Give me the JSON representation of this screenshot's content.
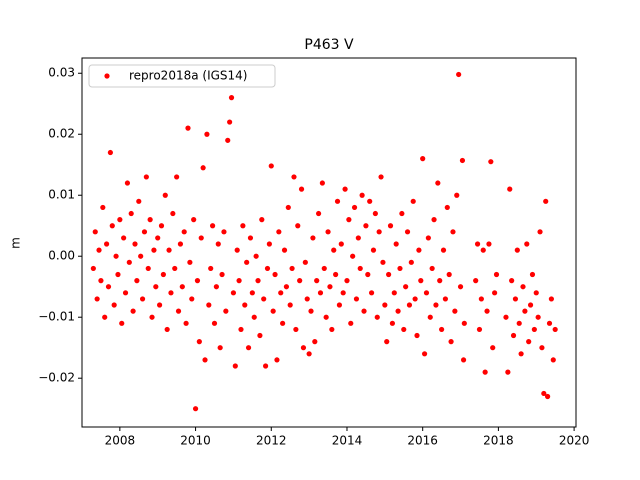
{
  "chart_data": {
    "type": "scatter",
    "title": "P463 V",
    "y_label": "m",
    "legend_position": "upper left",
    "xlim": [
      2007.0,
      2020.05
    ],
    "ylim": [
      -0.028,
      0.0325
    ],
    "xticks": [
      2008,
      2010,
      2012,
      2014,
      2016,
      2018,
      2020
    ],
    "yticks": [
      {
        "value": -0.02,
        "label": "−0.02"
      },
      {
        "value": -0.01,
        "label": "−0.01"
      },
      {
        "value": 0,
        "label": "0.00"
      },
      0.01,
      0.02,
      0.03
    ],
    "series": [
      {
        "name": "repro2018a (IGS14)",
        "color": "#ff0000",
        "x": [
          2007.3,
          2007.35,
          2007.4,
          2007.45,
          2007.5,
          2007.55,
          2007.6,
          2007.65,
          2007.7,
          2007.75,
          2007.8,
          2007.85,
          2007.9,
          2007.95,
          2008.0,
          2008.05,
          2008.1,
          2008.15,
          2008.2,
          2008.25,
          2008.3,
          2008.35,
          2008.4,
          2008.45,
          2008.5,
          2008.55,
          2008.6,
          2008.65,
          2008.7,
          2008.75,
          2008.8,
          2008.85,
          2008.9,
          2008.95,
          2009.0,
          2009.05,
          2009.1,
          2009.15,
          2009.2,
          2009.25,
          2009.3,
          2009.35,
          2009.4,
          2009.45,
          2009.5,
          2009.55,
          2009.6,
          2009.65,
          2009.7,
          2009.75,
          2009.8,
          2009.85,
          2009.9,
          2009.95,
          2010.0,
          2010.05,
          2010.1,
          2010.15,
          2010.2,
          2010.25,
          2010.3,
          2010.35,
          2010.4,
          2010.45,
          2010.5,
          2010.55,
          2010.6,
          2010.65,
          2010.7,
          2010.75,
          2010.8,
          2010.85,
          2010.9,
          2010.95,
          2011.0,
          2011.05,
          2011.1,
          2011.15,
          2011.2,
          2011.25,
          2011.3,
          2011.35,
          2011.4,
          2011.45,
          2011.5,
          2011.55,
          2011.6,
          2011.65,
          2011.7,
          2011.75,
          2011.8,
          2011.85,
          2011.9,
          2011.95,
          2012.0,
          2012.05,
          2012.1,
          2012.15,
          2012.2,
          2012.25,
          2012.3,
          2012.35,
          2012.4,
          2012.45,
          2012.5,
          2012.55,
          2012.6,
          2012.65,
          2012.7,
          2012.75,
          2012.8,
          2012.85,
          2012.9,
          2012.95,
          2013.0,
          2013.05,
          2013.1,
          2013.15,
          2013.2,
          2013.25,
          2013.3,
          2013.35,
          2013.4,
          2013.45,
          2013.5,
          2013.55,
          2013.6,
          2013.65,
          2013.7,
          2013.75,
          2013.8,
          2013.85,
          2013.9,
          2013.95,
          2014.0,
          2014.05,
          2014.1,
          2014.15,
          2014.2,
          2014.25,
          2014.3,
          2014.35,
          2014.4,
          2014.45,
          2014.5,
          2014.55,
          2014.6,
          2014.65,
          2014.7,
          2014.75,
          2014.8,
          2014.85,
          2014.9,
          2014.95,
          2015.0,
          2015.05,
          2015.1,
          2015.15,
          2015.2,
          2015.25,
          2015.3,
          2015.35,
          2015.4,
          2015.45,
          2015.5,
          2015.55,
          2015.6,
          2015.65,
          2015.7,
          2015.75,
          2015.8,
          2015.85,
          2015.9,
          2015.95,
          2016.0,
          2016.05,
          2016.1,
          2016.15,
          2016.2,
          2016.25,
          2016.3,
          2016.35,
          2016.4,
          2016.45,
          2016.5,
          2016.55,
          2016.6,
          2016.65,
          2016.7,
          2016.75,
          2016.8,
          2016.85,
          2016.9,
          2016.95,
          2017.0,
          2017.05,
          2017.08,
          2017.1,
          2017.4,
          2017.45,
          2017.5,
          2017.55,
          2017.6,
          2017.65,
          2017.7,
          2017.75,
          2017.8,
          2017.85,
          2017.9,
          2017.95,
          2018.2,
          2018.25,
          2018.3,
          2018.35,
          2018.4,
          2018.45,
          2018.5,
          2018.55,
          2018.6,
          2018.65,
          2018.7,
          2018.75,
          2018.8,
          2018.85,
          2018.9,
          2018.95,
          2019.0,
          2019.05,
          2019.1,
          2019.15,
          2019.2,
          2019.25,
          2019.3,
          2019.35,
          2019.4,
          2019.45,
          2019.5
        ],
        "values": [
          -0.002,
          0.004,
          -0.007,
          0.001,
          -0.004,
          0.008,
          -0.01,
          0.002,
          -0.005,
          0.017,
          0.005,
          -0.008,
          0.0,
          -0.003,
          0.006,
          -0.011,
          0.003,
          -0.006,
          0.012,
          -0.001,
          0.007,
          -0.009,
          0.002,
          -0.004,
          0.009,
          0.0,
          -0.007,
          0.004,
          0.013,
          -0.002,
          0.006,
          -0.01,
          0.001,
          -0.005,
          0.003,
          -0.008,
          0.005,
          -0.003,
          0.01,
          -0.012,
          0.001,
          -0.006,
          0.007,
          -0.002,
          0.013,
          -0.009,
          0.002,
          -0.005,
          0.004,
          -0.011,
          0.021,
          -0.001,
          -0.007,
          0.006,
          -0.025,
          -0.004,
          -0.014,
          0.003,
          0.0145,
          -0.017,
          0.02,
          -0.008,
          -0.002,
          0.005,
          -0.011,
          -0.005,
          0.002,
          -0.015,
          -0.003,
          0.004,
          -0.009,
          0.019,
          0.022,
          0.026,
          -0.006,
          -0.018,
          0.001,
          -0.004,
          -0.012,
          0.005,
          -0.008,
          -0.001,
          -0.015,
          0.003,
          -0.006,
          -0.01,
          0.0,
          -0.004,
          -0.013,
          0.006,
          -0.007,
          -0.018,
          -0.002,
          0.002,
          0.0148,
          -0.009,
          -0.003,
          -0.017,
          0.004,
          -0.006,
          -0.011,
          0.001,
          -0.005,
          0.008,
          -0.008,
          -0.002,
          0.013,
          -0.012,
          0.005,
          -0.004,
          0.011,
          -0.015,
          -0.001,
          -0.007,
          -0.016,
          -0.009,
          0.003,
          -0.014,
          -0.004,
          0.007,
          -0.006,
          0.012,
          -0.002,
          -0.01,
          0.004,
          -0.005,
          -0.012,
          0.001,
          -0.003,
          0.009,
          -0.008,
          0.002,
          -0.006,
          0.011,
          -0.004,
          0.006,
          -0.011,
          0.0,
          0.008,
          -0.007,
          0.003,
          -0.002,
          0.01,
          -0.009,
          0.005,
          -0.003,
          0.009,
          -0.006,
          0.001,
          0.007,
          -0.01,
          0.004,
          0.013,
          -0.001,
          -0.008,
          -0.014,
          -0.003,
          0.005,
          -0.011,
          -0.006,
          0.002,
          -0.009,
          -0.002,
          0.007,
          -0.012,
          -0.005,
          0.004,
          -0.008,
          -0.001,
          0.009,
          -0.007,
          -0.013,
          0.001,
          -0.004,
          0.016,
          -0.016,
          -0.006,
          0.003,
          -0.01,
          -0.002,
          0.006,
          -0.008,
          0.012,
          -0.004,
          -0.012,
          0.001,
          -0.007,
          0.008,
          -0.003,
          -0.014,
          0.004,
          -0.009,
          0.01,
          0.0298,
          -0.005,
          0.0157,
          -0.017,
          -0.011,
          -0.004,
          0.002,
          -0.012,
          -0.007,
          0.001,
          -0.019,
          -0.009,
          0.002,
          0.0155,
          -0.015,
          -0.006,
          -0.003,
          -0.01,
          -0.019,
          0.011,
          -0.004,
          -0.013,
          -0.007,
          0.001,
          -0.011,
          -0.016,
          -0.005,
          -0.009,
          0.002,
          -0.014,
          -0.008,
          -0.003,
          -0.012,
          -0.006,
          -0.01,
          0.004,
          -0.015,
          -0.0225,
          0.009,
          -0.023,
          -0.011,
          -0.007,
          -0.017,
          -0.012
        ]
      }
    ]
  }
}
